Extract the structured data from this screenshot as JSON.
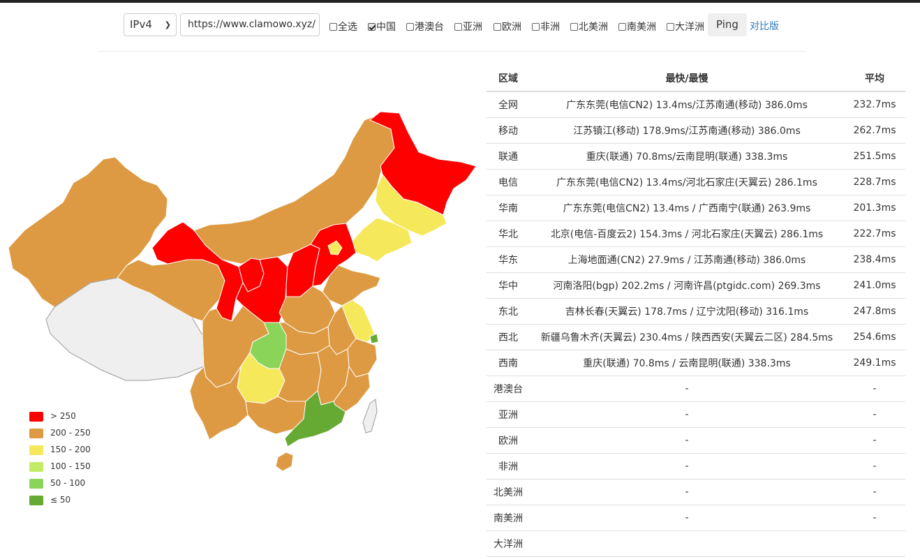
{
  "toolbar": {
    "protocol": "IPv4",
    "url": "https://www.clamowo.xyz/",
    "filters": [
      {
        "label": "全选",
        "checked": false
      },
      {
        "label": "中国",
        "checked": true
      },
      {
        "label": "港澳台",
        "checked": false
      },
      {
        "label": "亚洲",
        "checked": false
      },
      {
        "label": "欧洲",
        "checked": false
      },
      {
        "label": "非洲",
        "checked": false
      },
      {
        "label": "北美洲",
        "checked": false
      },
      {
        "label": "南美洲",
        "checked": false
      },
      {
        "label": "大洋洲",
        "checked": false
      }
    ],
    "ping_label": "Ping",
    "compare_label": "对比版"
  },
  "colors": {
    "red": "#ff0000",
    "orange": "#dd9a42",
    "yellow": "#f5e85a",
    "lightgreen": "#c3eb66",
    "green": "#8bd45a",
    "darkgreen": "#66aa33",
    "nodata": "#efefef"
  },
  "legend": [
    {
      "label": "> 250",
      "color": "#ff0000"
    },
    {
      "label": "200 - 250",
      "color": "#dd9a42"
    },
    {
      "label": "150 - 200",
      "color": "#f5e85a"
    },
    {
      "label": "100 - 150",
      "color": "#c3eb66"
    },
    {
      "label": "50 - 100",
      "color": "#8bd45a"
    },
    {
      "label": "≤ 50",
      "color": "#66aa33"
    }
  ],
  "table": {
    "headers": [
      "区域",
      "最快/最慢",
      "平均"
    ],
    "rows": [
      [
        "全网",
        "广东东莞(电信CN2) 13.4ms/江苏南通(移动) 386.0ms",
        "232.7ms"
      ],
      [
        "移动",
        "江苏镇江(移动) 178.9ms/江苏南通(移动) 386.0ms",
        "262.7ms"
      ],
      [
        "联通",
        "重庆(联通) 70.8ms/云南昆明(联通) 338.3ms",
        "251.5ms"
      ],
      [
        "电信",
        "广东东莞(电信CN2) 13.4ms/河北石家庄(天翼云) 286.1ms",
        "228.7ms"
      ],
      [
        "华南",
        "广东东莞(电信CN2) 13.4ms / 广西南宁(联通) 263.9ms",
        "201.3ms"
      ],
      [
        "华北",
        "北京(电信-百度云2) 154.3ms / 河北石家庄(天翼云) 286.1ms",
        "222.7ms"
      ],
      [
        "华东",
        "上海地面通(CN2) 27.9ms / 江苏南通(移动) 386.0ms",
        "238.4ms"
      ],
      [
        "华中",
        "河南洛阳(bgp) 202.2ms / 河南许昌(ptgidc.com) 269.3ms",
        "241.0ms"
      ],
      [
        "东北",
        "吉林长春(天翼云) 178.7ms / 辽宁沈阳(移动) 316.1ms",
        "247.8ms"
      ],
      [
        "西北",
        "新疆乌鲁木齐(天翼云) 230.4ms / 陕西西安(天翼云二区) 284.5ms",
        "254.6ms"
      ],
      [
        "西南",
        "重庆(联通) 70.8ms / 云南昆明(联通) 338.3ms",
        "249.1ms"
      ],
      [
        "港澳台",
        "-",
        "-"
      ],
      [
        "亚洲",
        "-",
        "-"
      ],
      [
        "欧洲",
        "-",
        "-"
      ],
      [
        "非洲",
        "-",
        "-"
      ],
      [
        "北美洲",
        "-",
        "-"
      ],
      [
        "南美洲",
        "-",
        "-"
      ],
      [
        "大洋洲",
        "",
        ""
      ]
    ]
  }
}
